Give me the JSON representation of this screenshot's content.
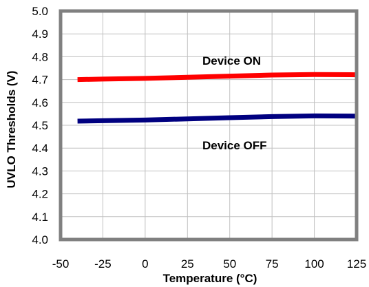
{
  "chart_data": {
    "type": "line",
    "xlabel": "Temperature (°C)",
    "ylabel": "UVLO Thresholds (V)",
    "xlim": [
      -50,
      125
    ],
    "ylim": [
      4.0,
      5.0
    ],
    "xticks": [
      "-50",
      "-25",
      "0",
      "25",
      "50",
      "75",
      "100",
      "125"
    ],
    "yticks": [
      "4.0",
      "4.1",
      "4.2",
      "4.3",
      "4.4",
      "4.5",
      "4.6",
      "4.7",
      "4.8",
      "4.9",
      "5.0"
    ],
    "grid": true,
    "legend": "none",
    "series": [
      {
        "name": "Device ON",
        "color": "#ff0000",
        "x": [
          -40,
          -25,
          0,
          25,
          50,
          75,
          100,
          125
        ],
        "y": [
          4.7,
          4.702,
          4.705,
          4.71,
          4.715,
          4.72,
          4.722,
          4.721
        ]
      },
      {
        "name": "Device OFF",
        "color": "#000080",
        "x": [
          -40,
          -25,
          0,
          25,
          50,
          75,
          100,
          125
        ],
        "y": [
          4.518,
          4.52,
          4.523,
          4.528,
          4.533,
          4.538,
          4.541,
          4.54
        ]
      }
    ],
    "annotations": [
      "Device ON",
      "Device OFF"
    ]
  }
}
